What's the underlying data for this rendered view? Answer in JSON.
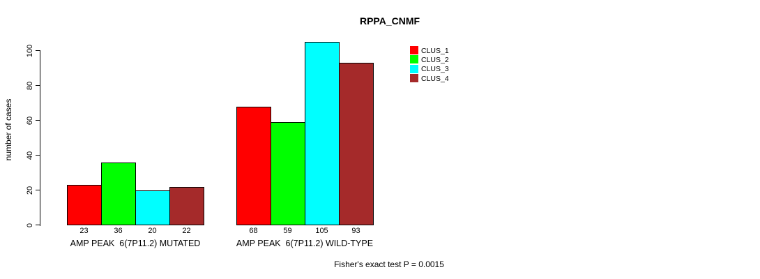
{
  "chart_data": {
    "type": "bar",
    "title": "RPPA_CNMF",
    "xlabel": "",
    "ylabel": "number of cases",
    "ylim": [
      0,
      100
    ],
    "yticks": [
      0,
      20,
      40,
      60,
      80,
      100
    ],
    "grid": false,
    "legend_position": "top-right",
    "bar_value_labels": true,
    "categories": [
      "AMP PEAK  6(7P11.2) MUTATED",
      "AMP PEAK  6(7P11.2) WILD-TYPE"
    ],
    "series": [
      {
        "name": "CLUS_1",
        "color": "#FF0000",
        "values": [
          23,
          68
        ]
      },
      {
        "name": "CLUS_2",
        "color": "#00FF00",
        "values": [
          36,
          59
        ]
      },
      {
        "name": "CLUS_3",
        "color": "#00FFFF",
        "values": [
          20,
          105
        ]
      },
      {
        "name": "CLUS_4",
        "color": "#A52A2A",
        "values": [
          22,
          93
        ]
      }
    ],
    "annotation": "Fisher's exact test P = 0.0015"
  },
  "colors": {
    "background": "#FFFFFF",
    "axis": "#000000",
    "text": "#000000"
  }
}
